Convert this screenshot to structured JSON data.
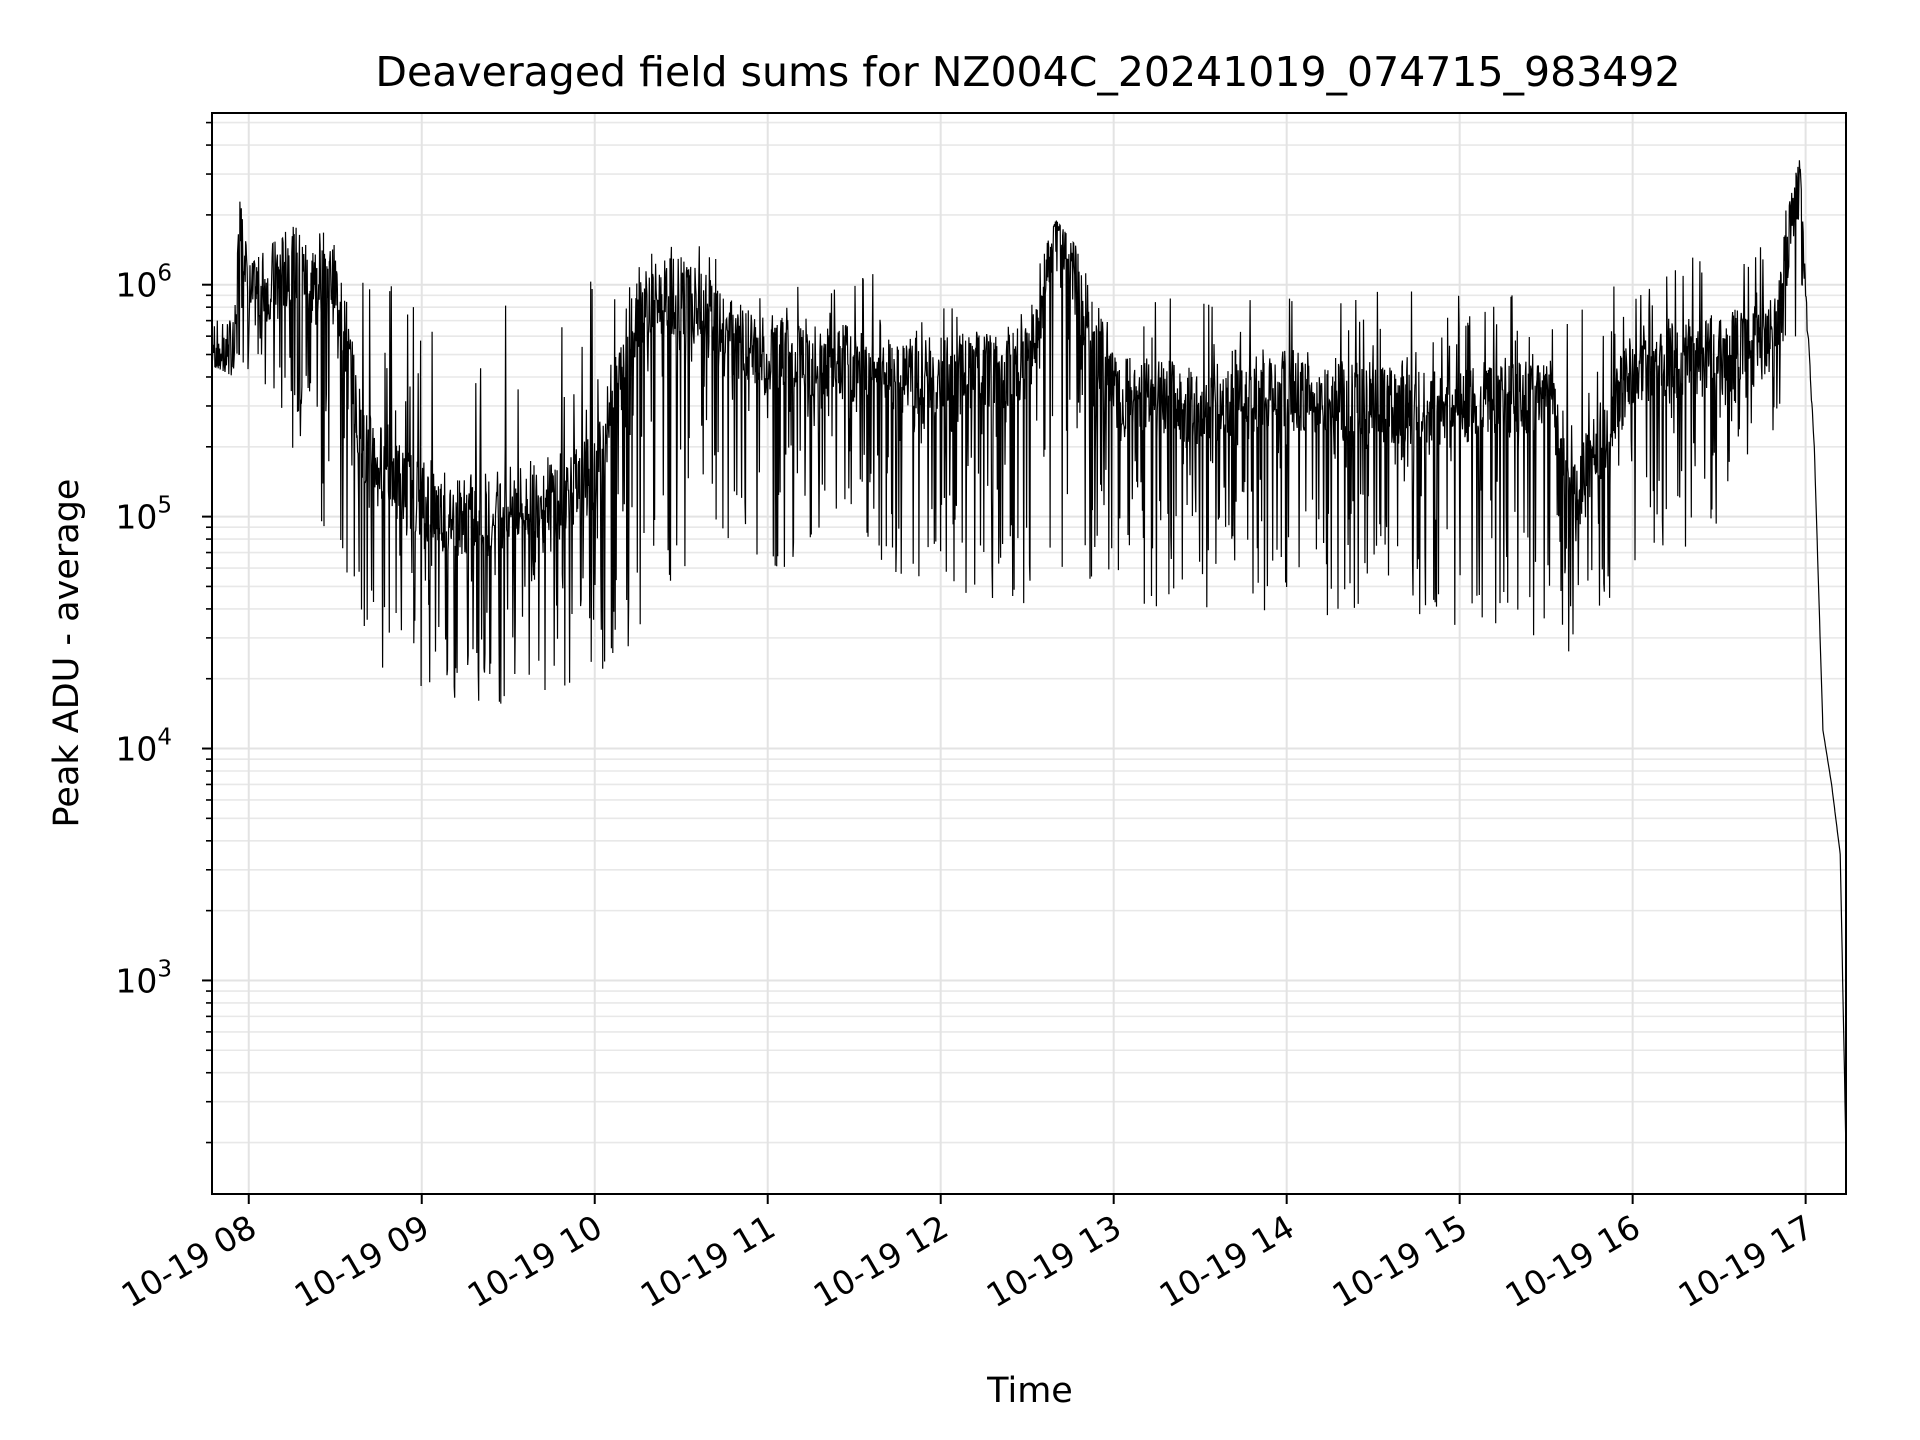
{
  "chart_data": {
    "type": "line",
    "title": "Deaveraged field sums for NZ004C_20241019_074715_983492",
    "xlabel": "Time",
    "ylabel": "Peak ADU - average",
    "yscale": "log",
    "xlim": [
      "2024-10-19T07:47:15",
      "2024-10-19T17:14:00"
    ],
    "ylim": [
      120,
      5500000
    ],
    "grid": true,
    "line_color": "#000000",
    "x_tick_labels": [
      "10-19 08",
      "10-19 09",
      "10-19 10",
      "10-19 11",
      "10-19 12",
      "10-19 13",
      "10-19 14",
      "10-19 15",
      "10-19 16",
      "10-19 17"
    ],
    "x_ticks": [
      "2024-10-19T08:00:00",
      "2024-10-19T09:00:00",
      "2024-10-19T10:00:00",
      "2024-10-19T11:00:00",
      "2024-10-19T12:00:00",
      "2024-10-19T13:00:00",
      "2024-10-19T14:00:00",
      "2024-10-19T15:00:00",
      "2024-10-19T16:00:00",
      "2024-10-19T17:00:00"
    ],
    "y_ticks": [
      {
        "value": 1000,
        "base": "10",
        "exp": "3"
      },
      {
        "value": 10000,
        "base": "10",
        "exp": "4"
      },
      {
        "value": 100000,
        "base": "10",
        "exp": "5"
      },
      {
        "value": 1000000,
        "base": "10",
        "exp": "6"
      }
    ],
    "series": [
      {
        "x": [
          "2024-10-19T07:47:15",
          "2024-10-19T07:55:00",
          "2024-10-19T07:57:00",
          "2024-10-19T08:00:00",
          "2024-10-19T08:15:00",
          "2024-10-19T08:20:00",
          "2024-10-19T08:30:00",
          "2024-10-19T08:40:00",
          "2024-10-19T08:50:00",
          "2024-10-19T09:00:00",
          "2024-10-19T09:10:00",
          "2024-10-19T09:30:00",
          "2024-10-19T09:50:00",
          "2024-10-19T10:00:00",
          "2024-10-19T10:15:00",
          "2024-10-19T10:30:00",
          "2024-10-19T10:45:00",
          "2024-10-19T11:00:00",
          "2024-10-19T11:30:00",
          "2024-10-19T12:00:00",
          "2024-10-19T12:30:00",
          "2024-10-19T12:40:00",
          "2024-10-19T13:00:00",
          "2024-10-19T13:30:00",
          "2024-10-19T14:00:00",
          "2024-10-19T14:30:00",
          "2024-10-19T15:00:00",
          "2024-10-19T15:30:00",
          "2024-10-19T15:40:00",
          "2024-10-19T16:00:00",
          "2024-10-19T16:30:00",
          "2024-10-19T16:50:00",
          "2024-10-19T16:58:00",
          "2024-10-19T17:00:00",
          "2024-10-19T17:03:00",
          "2024-10-19T17:06:00",
          "2024-10-19T17:09:00",
          "2024-10-19T17:12:00",
          "2024-10-19T17:14:00"
        ],
        "y": [
          550000,
          500000,
          2400000,
          900000,
          1200000,
          1100000,
          1000000,
          200000,
          150000,
          120000,
          100000,
          110000,
          130000,
          150000,
          800000,
          900000,
          600000,
          500000,
          450000,
          400000,
          450000,
          1800000,
          350000,
          300000,
          350000,
          300000,
          300000,
          350000,
          120000,
          450000,
          500000,
          600000,
          3500000,
          1000000,
          200000,
          12000,
          7000,
          3500,
          180
        ],
        "y_range_low": [
          450000,
          400000,
          500000,
          400000,
          200000,
          150000,
          60000,
          25000,
          20000,
          18000,
          15000,
          15000,
          16000,
          20000,
          30000,
          60000,
          70000,
          60000,
          60000,
          50000,
          40000,
          60000,
          40000,
          35000,
          40000,
          35000,
          30000,
          30000,
          25000,
          60000,
          80000,
          250000,
          700000,
          800000,
          200000,
          12000,
          7000,
          3500,
          180
        ],
        "y_range_high": [
          700000,
          700000,
          2400000,
          1200000,
          1800000,
          1800000,
          1600000,
          1100000,
          1000000,
          950000,
          950000,
          1000000,
          1000000,
          1200000,
          1400000,
          1600000,
          1400000,
          1300000,
          1200000,
          900000,
          900000,
          1900000,
          900000,
          1000000,
          900000,
          1000000,
          900000,
          900000,
          900000,
          1200000,
          1400000,
          1500000,
          3500000,
          1000000,
          200000,
          12000,
          7000,
          3500,
          180
        ]
      }
    ]
  }
}
